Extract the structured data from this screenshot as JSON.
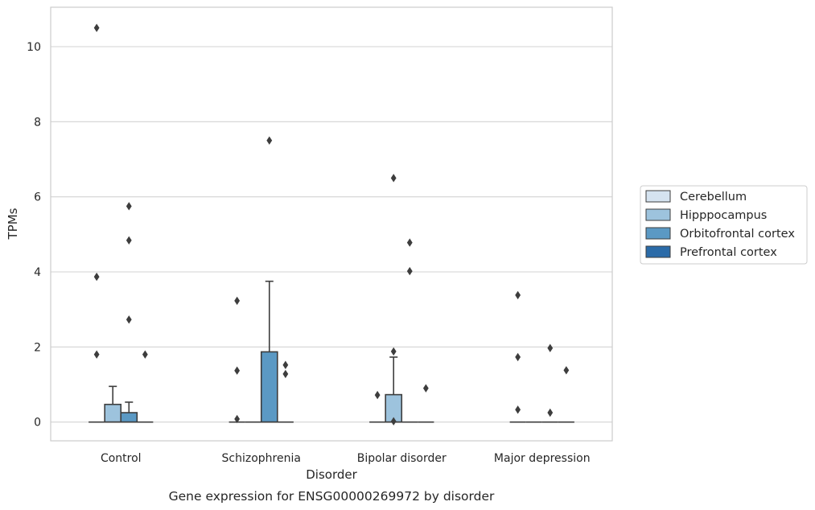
{
  "chart_data": {
    "type": "box",
    "caption": "Gene expression for ENSG00000269972 by disorder",
    "xlabel": "Disorder",
    "ylabel": "TPMs",
    "categories": [
      "Control",
      "Schizophrenia",
      "Bipolar disorder",
      "Major depression"
    ],
    "ylim": [
      -0.5,
      11.05
    ],
    "yticks": [
      0,
      2,
      4,
      6,
      8,
      10
    ],
    "grid": "horizontal",
    "legend_position": "right",
    "series": [
      {
        "name": "Cerebellum",
        "color": "#d5e3f0",
        "boxes": [
          {
            "q1": 0,
            "median": 0,
            "q3": 0,
            "whisker_low": 0,
            "whisker_high": 0,
            "fliers": [
              10.5,
              3.87,
              1.8
            ]
          },
          {
            "q1": 0,
            "median": 0,
            "q3": 0,
            "whisker_low": 0,
            "whisker_high": 0,
            "fliers": [
              3.23,
              1.37,
              0.08
            ]
          },
          {
            "q1": 0,
            "median": 0,
            "q3": 0,
            "whisker_low": 0,
            "whisker_high": 0,
            "fliers": [
              0.72
            ]
          },
          {
            "q1": 0,
            "median": 0,
            "q3": 0,
            "whisker_low": 0,
            "whisker_high": 0,
            "fliers": [
              3.38,
              1.73,
              0.33
            ]
          }
        ]
      },
      {
        "name": "Hipppocampus",
        "color": "#9dc3dd",
        "boxes": [
          {
            "q1": 0,
            "median": 0,
            "q3": 0.47,
            "whisker_low": 0,
            "whisker_high": 0.95,
            "fliers": []
          },
          {
            "q1": 0,
            "median": 0,
            "q3": 0,
            "whisker_low": 0,
            "whisker_high": 0,
            "fliers": []
          },
          {
            "q1": 0,
            "median": 0,
            "q3": 0.73,
            "whisker_low": 0,
            "whisker_high": 1.73,
            "fliers": [
              6.5,
              1.88,
              0.02
            ]
          },
          {
            "q1": 0,
            "median": 0,
            "q3": 0,
            "whisker_low": 0,
            "whisker_high": 0,
            "fliers": []
          }
        ]
      },
      {
        "name": "Orbitofrontal cortex",
        "color": "#5b99c4",
        "boxes": [
          {
            "q1": 0,
            "median": 0,
            "q3": 0.25,
            "whisker_low": 0,
            "whisker_high": 0.53,
            "fliers": [
              5.75,
              4.84,
              2.73
            ]
          },
          {
            "q1": 0,
            "median": 0,
            "q3": 1.87,
            "whisker_low": 0,
            "whisker_high": 3.75,
            "fliers": [
              7.5
            ]
          },
          {
            "q1": 0,
            "median": 0,
            "q3": 0,
            "whisker_low": 0,
            "whisker_high": 0,
            "fliers": [
              4.78,
              4.02
            ]
          },
          {
            "q1": 0,
            "median": 0,
            "q3": 0,
            "whisker_low": 0,
            "whisker_high": 0,
            "fliers": [
              1.97,
              0.25
            ]
          }
        ]
      },
      {
        "name": "Prefrontal cortex",
        "color": "#2b6ba8",
        "boxes": [
          {
            "q1": 0,
            "median": 0,
            "q3": 0,
            "whisker_low": 0,
            "whisker_high": 0,
            "fliers": [
              1.8
            ]
          },
          {
            "q1": 0,
            "median": 0,
            "q3": 0,
            "whisker_low": 0,
            "whisker_high": 0,
            "fliers": [
              1.52,
              1.28
            ]
          },
          {
            "q1": 0,
            "median": 0,
            "q3": 0,
            "whisker_low": 0,
            "whisker_high": 0,
            "fliers": [
              0.9
            ]
          },
          {
            "q1": 0,
            "median": 0,
            "q3": 0,
            "whisker_low": 0,
            "whisker_high": 0,
            "fliers": [
              1.38
            ]
          }
        ]
      }
    ]
  }
}
